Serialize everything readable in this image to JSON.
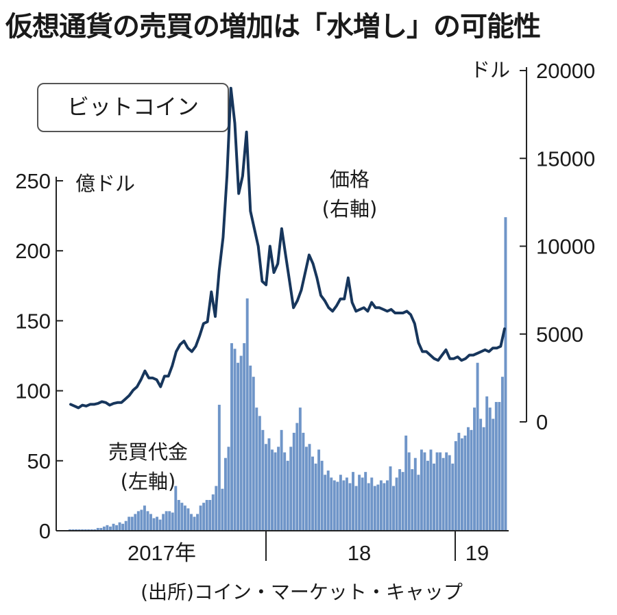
{
  "chart_data": {
    "type": "bar+line",
    "title": "仮想通貨の売買の増加は「水増し」の可能性",
    "legend_box": "ビットコイン",
    "source": "(出所)コイン・マーケット・キャップ",
    "x_labels": [
      "2017年",
      "18",
      "19"
    ],
    "left_axis": {
      "unit": "億ドル",
      "ylim": [
        0,
        250
      ],
      "ticks": [
        "0",
        "50",
        "100",
        "150",
        "200",
        "250"
      ]
    },
    "right_axis": {
      "unit": "ドル",
      "ylim": [
        0,
        20000
      ],
      "ticks": [
        "0",
        "5000",
        "10000",
        "15000",
        "20000"
      ]
    },
    "series": [
      {
        "name": "売買代金",
        "axis_note": "(左軸)",
        "kind": "bar",
        "axis": "left",
        "color": "#6f95c8",
        "values": [
          1,
          1,
          1,
          1,
          1,
          1,
          1,
          1,
          1,
          2,
          2,
          3,
          4,
          3,
          5,
          4,
          6,
          5,
          7,
          10,
          10,
          12,
          14,
          15,
          18,
          14,
          12,
          9,
          10,
          8,
          12,
          14,
          14,
          13,
          32,
          22,
          20,
          18,
          16,
          12,
          10,
          12,
          18,
          20,
          22,
          22,
          26,
          32,
          90,
          30,
          52,
          60,
          134,
          130,
          120,
          125,
          134,
          166,
          118,
          110,
          88,
          82,
          72,
          62,
          66,
          58,
          56,
          60,
          72,
          56,
          50,
          60,
          70,
          77,
          88,
          70,
          60,
          62,
          53,
          48,
          58,
          50,
          40,
          43,
          38,
          36,
          35,
          40,
          36,
          38,
          34,
          42,
          32,
          40,
          38,
          42,
          34,
          38,
          32,
          33,
          36,
          34,
          36,
          46,
          32,
          38,
          44,
          42,
          68,
          56,
          44,
          52,
          40,
          58,
          56,
          50,
          58,
          48,
          56,
          56,
          52,
          56,
          54,
          48,
          64,
          70,
          66,
          68,
          74,
          72,
          88,
          120,
          80,
          74,
          96,
          88,
          80,
          92,
          92,
          110,
          224
        ],
        "unit": "億ドル"
      },
      {
        "name": "価格",
        "axis_note": "(右軸)",
        "kind": "line",
        "axis": "right",
        "color": "#17365c",
        "values": [
          1000,
          900,
          800,
          950,
          900,
          1000,
          1000,
          1050,
          1150,
          1100,
          950,
          1050,
          1100,
          1100,
          1300,
          1500,
          1800,
          2000,
          2400,
          2900,
          2500,
          2500,
          2400,
          2000,
          2600,
          2600,
          3200,
          4000,
          4400,
          4600,
          4200,
          4000,
          4300,
          4900,
          5600,
          5700,
          7400,
          6000,
          8600,
          10500,
          14000,
          19000,
          17000,
          13000,
          14000,
          16500,
          12000,
          11000,
          10000,
          8000,
          7800,
          10000,
          8500,
          9000,
          11000,
          9500,
          8000,
          6500,
          6900,
          7500,
          8500,
          9500,
          9000,
          8200,
          7200,
          6900,
          6500,
          6300,
          6600,
          7000,
          7000,
          8200,
          6800,
          6300,
          6400,
          6500,
          6300,
          6800,
          6500,
          6500,
          6400,
          6300,
          6400,
          6200,
          6200,
          6200,
          6300,
          6100,
          5600,
          4500,
          4000,
          4000,
          3800,
          3600,
          3500,
          3800,
          4100,
          3600,
          3600,
          3700,
          3500,
          3600,
          3800,
          3800,
          3900,
          4000,
          4100,
          4000,
          4200,
          4200,
          4300,
          5300
        ]
      }
    ]
  }
}
